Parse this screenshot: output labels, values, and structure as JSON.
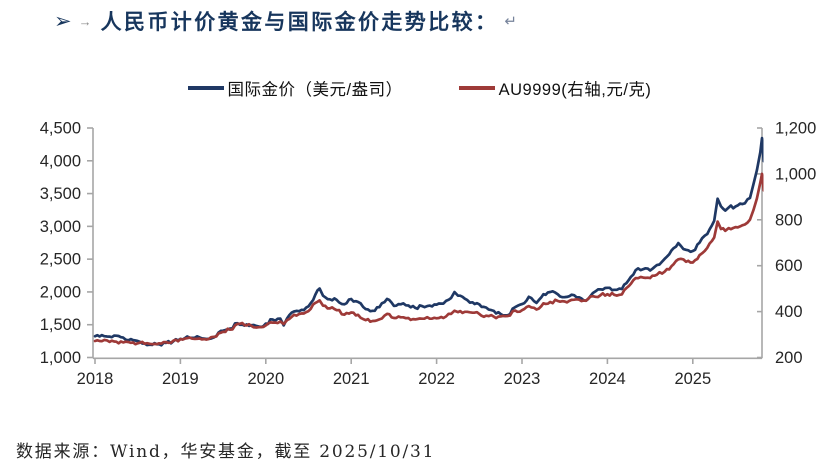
{
  "title": {
    "bullet": "➢",
    "tab_mark": "→",
    "text": "人民币计价黄金与国际金价走势比较：",
    "return_mark": "↵"
  },
  "legend": [
    {
      "label": "国际金价（美元/盎司）",
      "color": "#1F3864"
    },
    {
      "label": "AU9999(右轴,元/克)",
      "color": "#9E3A38"
    }
  ],
  "source_note": "数据来源：Wind，华安基金，截至 2025/10/31",
  "colors": {
    "axis": "#A6A6A6",
    "tick_text": "#262626",
    "navy": "#1F3864",
    "red": "#9E3A38"
  },
  "chart_data": {
    "type": "line",
    "title": "人民币计价黄金与国际金价走势比较",
    "x_ticks": [
      "2018",
      "2019",
      "2020",
      "2021",
      "2022",
      "2023",
      "2024",
      "2025"
    ],
    "left_axis": {
      "min": 1000,
      "max": 4500,
      "ticks": [
        "1,000",
        "1,500",
        "2,000",
        "2,500",
        "3,000",
        "3,500",
        "4,000",
        "4,500"
      ]
    },
    "right_axis": {
      "min": 200,
      "max": 1200,
      "ticks": [
        "200",
        "400",
        "600",
        "800",
        "1,000",
        "1,200"
      ]
    },
    "grid": false,
    "legend_position": "top",
    "x": [
      2018.0,
      2018.08,
      2018.17,
      2018.25,
      2018.33,
      2018.42,
      2018.5,
      2018.58,
      2018.67,
      2018.75,
      2018.83,
      2018.92,
      2019.0,
      2019.08,
      2019.17,
      2019.25,
      2019.33,
      2019.42,
      2019.5,
      2019.58,
      2019.67,
      2019.75,
      2019.83,
      2019.92,
      2020.0,
      2020.08,
      2020.17,
      2020.21,
      2020.25,
      2020.33,
      2020.42,
      2020.5,
      2020.58,
      2020.63,
      2020.67,
      2020.75,
      2020.83,
      2020.92,
      2021.0,
      2021.08,
      2021.17,
      2021.25,
      2021.33,
      2021.42,
      2021.5,
      2021.58,
      2021.67,
      2021.75,
      2021.83,
      2021.92,
      2022.0,
      2022.08,
      2022.17,
      2022.21,
      2022.25,
      2022.33,
      2022.42,
      2022.5,
      2022.58,
      2022.67,
      2022.75,
      2022.83,
      2022.92,
      2023.0,
      2023.08,
      2023.17,
      2023.25,
      2023.33,
      2023.42,
      2023.5,
      2023.58,
      2023.67,
      2023.75,
      2023.83,
      2023.92,
      2024.0,
      2024.08,
      2024.17,
      2024.25,
      2024.33,
      2024.42,
      2024.5,
      2024.58,
      2024.67,
      2024.75,
      2024.83,
      2024.92,
      2025.0,
      2025.08,
      2025.17,
      2025.25,
      2025.29,
      2025.33,
      2025.38,
      2025.42,
      2025.5,
      2025.58,
      2025.67,
      2025.71,
      2025.75,
      2025.79,
      2025.81,
      2025.83
    ],
    "series": [
      {
        "name": "国际金价（美元/盎司）",
        "axis": "left",
        "color": "#1F3864",
        "values": [
          1325,
          1342,
          1318,
          1332,
          1303,
          1281,
          1252,
          1213,
          1192,
          1203,
          1222,
          1250,
          1283,
          1321,
          1302,
          1292,
          1284,
          1327,
          1409,
          1440,
          1523,
          1487,
          1493,
          1472,
          1517,
          1580,
          1593,
          1490,
          1597,
          1702,
          1728,
          1781,
          1957,
          2052,
          1942,
          1888,
          1879,
          1812,
          1892,
          1848,
          1738,
          1712,
          1769,
          1894,
          1787,
          1812,
          1793,
          1757,
          1784,
          1791,
          1806,
          1822,
          1908,
          1998,
          1942,
          1897,
          1842,
          1811,
          1762,
          1711,
          1662,
          1644,
          1768,
          1814,
          1926,
          1832,
          1966,
          1999,
          1962,
          1921,
          1958,
          1917,
          1866,
          1984,
          2038,
          2063,
          2032,
          2044,
          2183,
          2331,
          2348,
          2327,
          2409,
          2503,
          2634,
          2744,
          2643,
          2624,
          2752,
          2884,
          3084,
          3422,
          3305,
          3240,
          3288,
          3303,
          3339,
          3434,
          3640,
          3857,
          4130,
          4346,
          3995
        ]
      },
      {
        "name": "AU9999(右轴,元/克)",
        "axis": "right",
        "color": "#9E3A38",
        "values": [
          272,
          271,
          268,
          269,
          266,
          264,
          262,
          260,
          258,
          262,
          267,
          274,
          280,
          284,
          281,
          279,
          280,
          292,
          312,
          321,
          347,
          341,
          338,
          332,
          340,
          352,
          357,
          346,
          363,
          386,
          392,
          402,
          438,
          449,
          426,
          414,
          406,
          387,
          396,
          386,
          363,
          359,
          366,
          390,
          372,
          375,
          372,
          366,
          369,
          369,
          371,
          372,
          390,
          404,
          398,
          399,
          395,
          390,
          382,
          378,
          379,
          381,
          405,
          406,
          424,
          409,
          436,
          442,
          446,
          444,
          451,
          452,
          447,
          467,
          472,
          476,
          473,
          475,
          511,
          546,
          548,
          546,
          561,
          574,
          598,
          628,
          617,
          614,
          646,
          678,
          723,
          792,
          760,
          752,
          764,
          768,
          776,
          801,
          842,
          893,
          962,
          1000,
          928
        ]
      }
    ]
  }
}
